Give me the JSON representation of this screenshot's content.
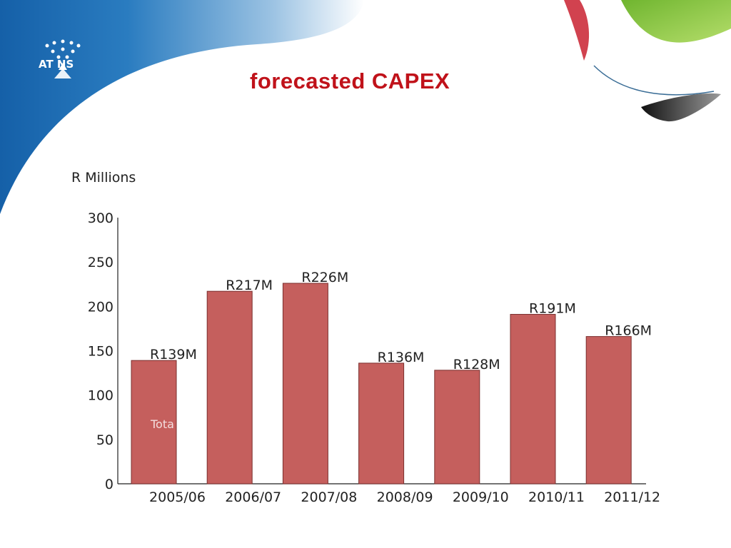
{
  "slide": {
    "title": "forecasted CAPEX",
    "logo_text": "AT NS",
    "colors": {
      "title": "#c0121a",
      "bar": "#c55f5d",
      "bar_stroke": "#7a2f2e",
      "blue": "#1b6db3",
      "green": "#8cc63e",
      "red_ribbon": "#d1424f",
      "dark_ribbon": "#2a2a2a"
    }
  },
  "chart_data": {
    "type": "bar",
    "ylabel": "R Millions",
    "ylim": [
      0,
      300
    ],
    "yticks": [
      0,
      50,
      100,
      150,
      200,
      250,
      300
    ],
    "grid": false,
    "categories": [
      "2005/06",
      "2006/07",
      "2007/08",
      "2008/09",
      "2009/10",
      "2010/11",
      "2011/12"
    ],
    "values": [
      139,
      217,
      226,
      136,
      128,
      191,
      166
    ],
    "data_labels": [
      "R139M",
      "R217M",
      "R226M",
      "R136M",
      "R128M",
      "R191M",
      "R166M"
    ],
    "annotation": "Tota"
  }
}
